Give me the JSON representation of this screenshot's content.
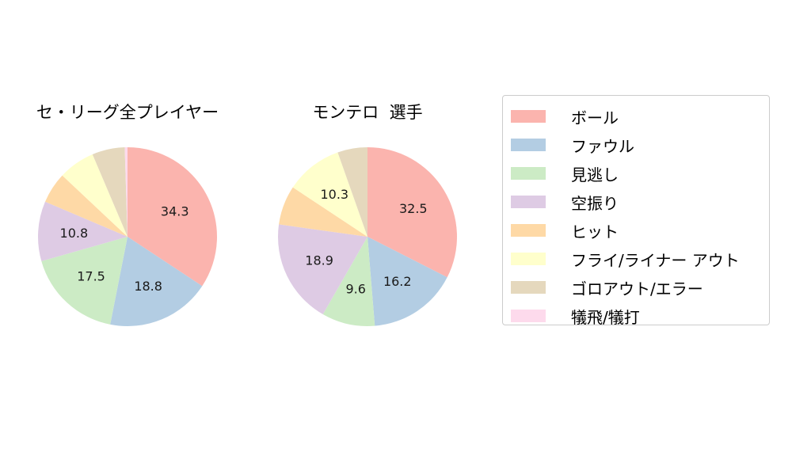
{
  "colors": {
    "ボール": "#fbb4ae",
    "ファウル": "#b3cde3",
    "見逃し": "#ccebc5",
    "空振り": "#decbe4",
    "ヒット": "#fed9a6",
    "フライ/ライナー アウト": "#ffffcc",
    "ゴロアウト/エラー": "#e5d8bd",
    "犠飛/犠打": "#fddaec"
  },
  "legend": {
    "items": [
      "ボール",
      "ファウル",
      "見逃し",
      "空振り",
      "ヒット",
      "フライ/ライナー アウト",
      "ゴロアウト/エラー",
      "犠飛/犠打"
    ]
  },
  "chart_data": [
    {
      "type": "pie",
      "title": "セ・リーグ全プレイヤー",
      "categories": [
        "ボール",
        "ファウル",
        "見逃し",
        "空振り",
        "ヒット",
        "フライ/ライナー アウト",
        "ゴロアウト/エラー",
        "犠飛/犠打"
      ],
      "values": [
        34.3,
        18.8,
        17.5,
        10.8,
        5.6,
        6.6,
        5.9,
        0.5
      ],
      "labels": [
        "34.3",
        "18.8",
        "17.5",
        "10.8",
        "",
        "",
        "",
        ""
      ],
      "start_angle": 90,
      "direction": "clockwise"
    },
    {
      "type": "pie",
      "title": "モンテロ  選手",
      "categories": [
        "ボール",
        "ファウル",
        "見逃し",
        "空振り",
        "ヒット",
        "フライ/ライナー アウト",
        "ゴロアウト/エラー",
        "犠飛/犠打"
      ],
      "values": [
        32.5,
        16.2,
        9.6,
        18.9,
        7.1,
        10.3,
        5.4,
        0
      ],
      "labels": [
        "32.5",
        "16.2",
        "9.6",
        "18.9",
        "",
        "10.3",
        "",
        ""
      ],
      "start_angle": 90,
      "direction": "clockwise"
    }
  ]
}
